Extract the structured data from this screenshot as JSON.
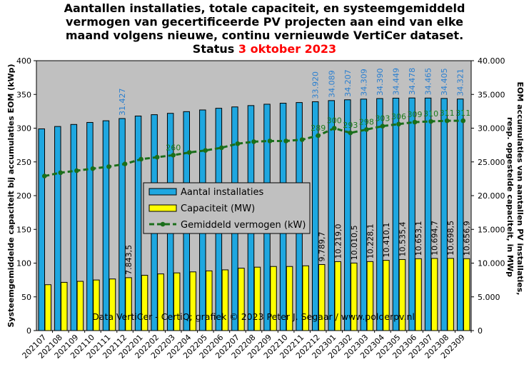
{
  "title": {
    "line1": "Aantallen installaties, totale capaciteit, en systeemgemiddeld",
    "line2": "vermogen van gecertificeerde PV projecten aan eind van elke",
    "line3": "maand volgens nieuwe, continu vernieuwde VertiCer dataset.",
    "status_prefix": "Status ",
    "status_date": "3 oktober 2023"
  },
  "colors": {
    "plot_bg": "#c0c0c0",
    "installaties": "#1ea7e0",
    "capaciteit": "#ffff00",
    "gemiddeld": "#1a6e1a",
    "label_blue": "#2a7fd0",
    "label_green": "#1a7a1a",
    "status_red": "#ff0000"
  },
  "chart_data": {
    "type": "bar",
    "categories": [
      "202107",
      "202108",
      "202109",
      "202110",
      "202111",
      "202112",
      "202201",
      "202202",
      "202203",
      "202204",
      "202205",
      "202206",
      "202207",
      "202208",
      "202209",
      "202210",
      "202211",
      "202212",
      "202301",
      "202302",
      "202303",
      "202304",
      "202305",
      "202306",
      "202307",
      "202308",
      "202309"
    ],
    "left_axis": {
      "label": "Systeemgemiddelde capaciteit bij accumulaties EOM (kWp)",
      "ticks": [
        "0",
        "50",
        "100",
        "150",
        "200",
        "250",
        "300",
        "350",
        "400"
      ],
      "ylim": [
        0,
        400
      ]
    },
    "right_axis": {
      "label_line1": "EOM accumulaties van aantallen PV installaties,",
      "label_line2": "resp. opgestelde capaciteit, in MWp",
      "ticks": [
        "0",
        "5.000",
        "10.000",
        "15.000",
        "20.000",
        "25.000",
        "30.000",
        "35.000",
        "40.000"
      ],
      "ylim": [
        0,
        40000
      ]
    },
    "series": [
      {
        "name": "Aantal installaties",
        "axis": "right",
        "values": [
          29900,
          30250,
          30550,
          30850,
          31100,
          31427,
          31800,
          32000,
          32200,
          32450,
          32700,
          32950,
          33150,
          33350,
          33550,
          33700,
          33800,
          33920,
          34089,
          34207,
          34309,
          34390,
          34449,
          34478,
          34465,
          34405,
          34321
        ]
      },
      {
        "name": "Capaciteit (MW)",
        "axis": "right",
        "values": [
          6800,
          7150,
          7300,
          7500,
          7650,
          7843.5,
          8200,
          8400,
          8550,
          8700,
          8850,
          9000,
          9250,
          9400,
          9500,
          9500,
          9600,
          9789.7,
          10219.0,
          10010.5,
          10228.1,
          10410.1,
          10535.4,
          10653.1,
          10694.7,
          10698.5,
          10656.9
        ]
      },
      {
        "name": "Gemiddeld vermogen (kW)",
        "axis": "left",
        "values": [
          229,
          234,
          237,
          240,
          243,
          247,
          254,
          257,
          260,
          264,
          267,
          271,
          277,
          280,
          281,
          281,
          283,
          289,
          300,
          293,
          298,
          303,
          306,
          309,
          310,
          311,
          311
        ]
      }
    ],
    "labels": {
      "installaties": [
        {
          "i": 5,
          "text": "31.427"
        },
        {
          "i": 17,
          "text": "33.920"
        },
        {
          "i": 18,
          "text": "34.089"
        },
        {
          "i": 19,
          "text": "34.207"
        },
        {
          "i": 20,
          "text": "34.309"
        },
        {
          "i": 21,
          "text": "34.390"
        },
        {
          "i": 22,
          "text": "34.449"
        },
        {
          "i": 23,
          "text": "34.478"
        },
        {
          "i": 24,
          "text": "34.465"
        },
        {
          "i": 25,
          "text": "34.405"
        },
        {
          "i": 26,
          "text": "34.321"
        }
      ],
      "capaciteit": [
        {
          "i": 5,
          "text": "7.843,5"
        },
        {
          "i": 17,
          "text": "9.789,7"
        },
        {
          "i": 18,
          "text": "10.219,0"
        },
        {
          "i": 19,
          "text": "10.010,5"
        },
        {
          "i": 20,
          "text": "10.228,1"
        },
        {
          "i": 21,
          "text": "10.410,1"
        },
        {
          "i": 22,
          "text": "10.535,4"
        },
        {
          "i": 23,
          "text": "10.653,1"
        },
        {
          "i": 24,
          "text": "10.694,7"
        },
        {
          "i": 25,
          "text": "10.698,5"
        },
        {
          "i": 26,
          "text": "10.656,9"
        }
      ],
      "gemiddeld": [
        {
          "i": 8,
          "text": "260"
        },
        {
          "i": 17,
          "text": "289"
        },
        {
          "i": 18,
          "text": "300"
        },
        {
          "i": 19,
          "text": "293"
        },
        {
          "i": 20,
          "text": "298"
        },
        {
          "i": 21,
          "text": "303"
        },
        {
          "i": 22,
          "text": "306"
        },
        {
          "i": 23,
          "text": "309"
        },
        {
          "i": 24,
          "text": "310"
        },
        {
          "i": 25,
          "text": "311"
        },
        {
          "i": 26,
          "text": "311"
        }
      ]
    },
    "legend": {
      "position": "center-left",
      "items": [
        "Aantal installaties",
        "Capaciteit (MW)",
        "Gemiddeld vermogen (kW)"
      ]
    },
    "watermark": "Data VertiCer - CertiQ; grafiek © 2023 Peter J. Segaar / www.polderpv.nl",
    "grid": false
  }
}
